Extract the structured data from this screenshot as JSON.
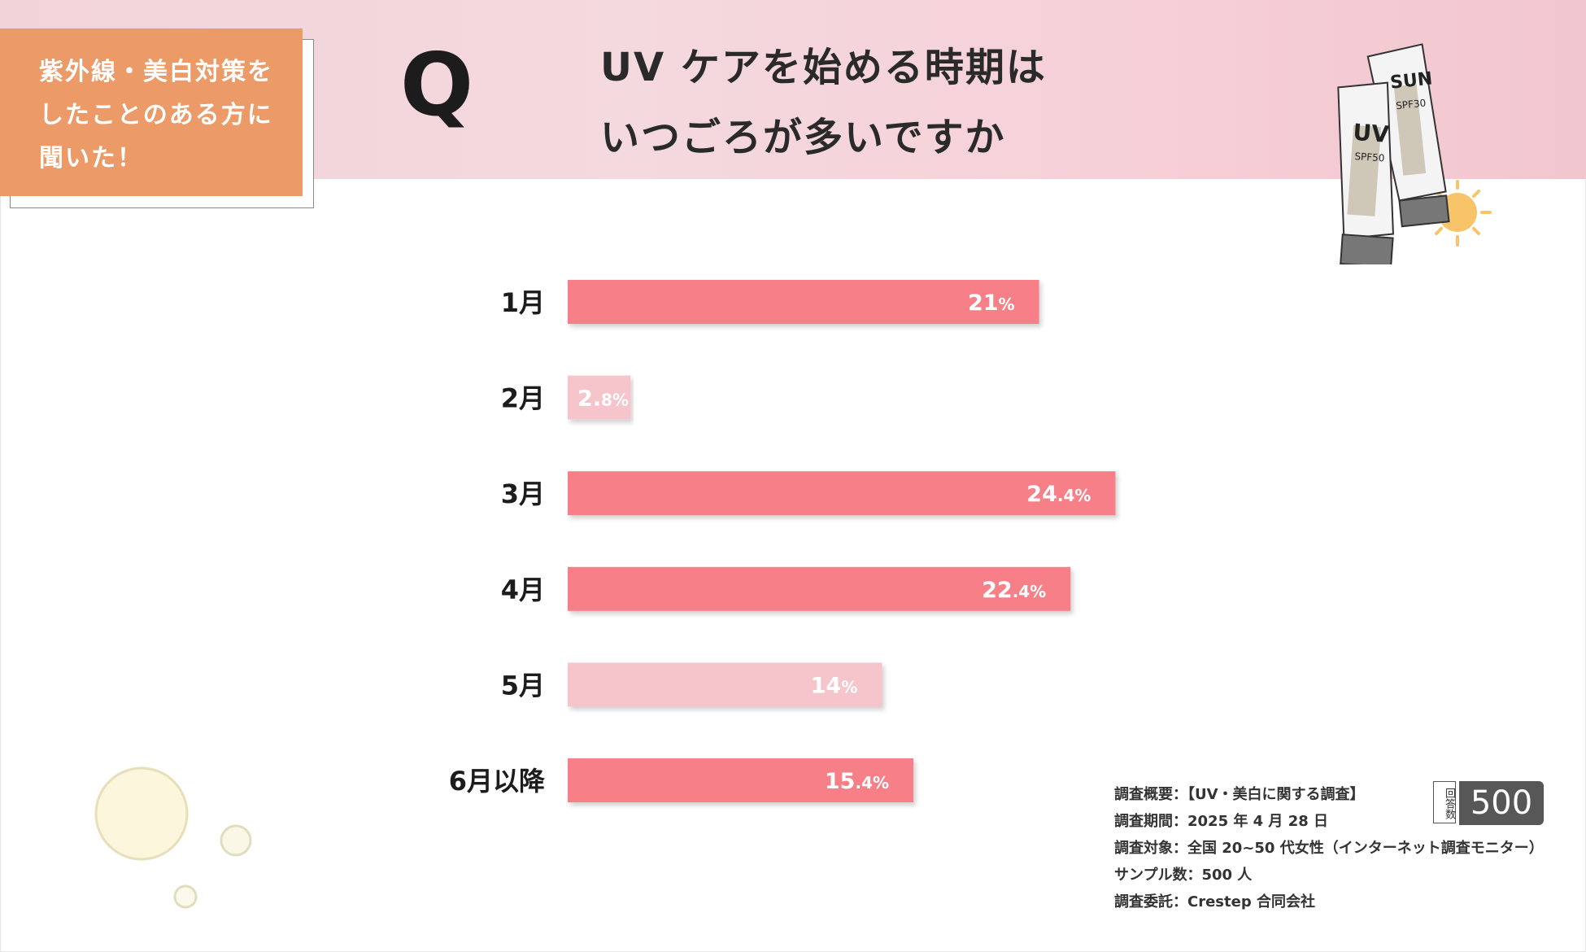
{
  "tag": {
    "lines": [
      "紫外線・美白対策を",
      "したことのある方に",
      "聞いた！"
    ]
  },
  "q_mark": "Q",
  "title": {
    "lines": [
      "UV ケアを始める時期は",
      "いつごろが多いですか"
    ]
  },
  "illustration": {
    "tube1_text": "UV",
    "tube1_spf": "SPF50",
    "tube2_text": "SUN",
    "tube2_spf": "SPF30"
  },
  "chart_data": {
    "type": "bar",
    "orientation": "horizontal",
    "categories": [
      "1月",
      "2月",
      "3月",
      "4月",
      "5月",
      "6月以降"
    ],
    "values": [
      21,
      2.8,
      24.4,
      22.4,
      14,
      15.4
    ],
    "value_labels": [
      {
        "main": "21",
        "small": "%"
      },
      {
        "main": "2.",
        "small": "8%"
      },
      {
        "main": "24",
        "small": ".4%"
      },
      {
        "main": "22",
        "small": ".4%"
      },
      {
        "main": "14",
        "small": "%"
      },
      {
        "main": "15",
        "small": ".4%"
      }
    ],
    "unit": "%",
    "xlim": [
      0,
      100
    ],
    "bar_colors": [
      "#f77f87",
      "#f5c5cb",
      "#f77f87",
      "#f77f87",
      "#f5c5cb",
      "#f77f87"
    ]
  },
  "survey": {
    "lines": [
      "調査概要：【UV・美白に関する調査】",
      "調査期間：2025 年 4 月 28 日",
      "調査対象：全国 20~50 代女性（インターネット調査モニター）",
      "サンプル数：500 人",
      "調査委託：Crestep 合同会社"
    ]
  },
  "badge": {
    "label": "回答数",
    "value": "500"
  }
}
